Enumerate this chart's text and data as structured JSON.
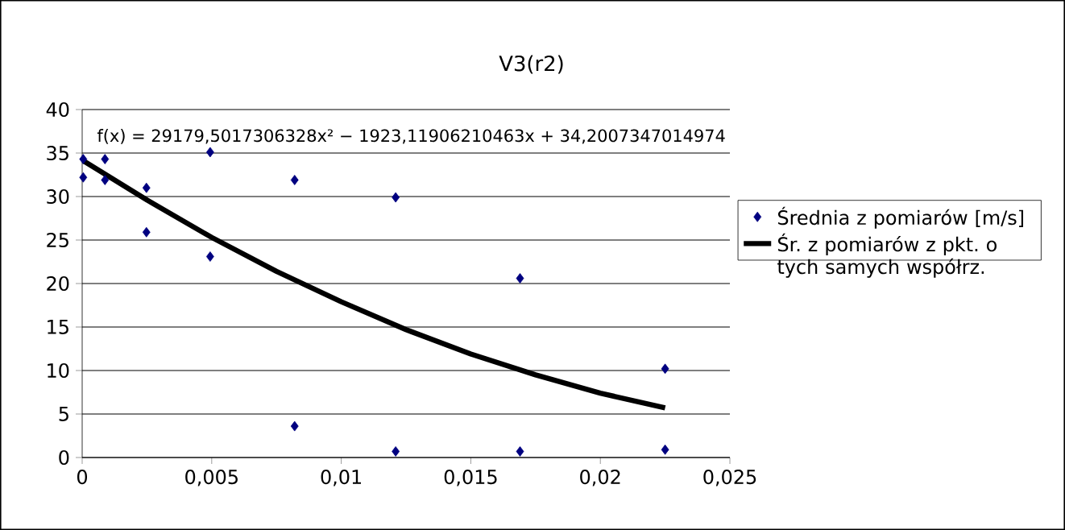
{
  "chart_data": {
    "type": "scatter",
    "title": "V3(r2)",
    "annotations": [
      "f(x) = 29179,5017306328x² − 1923,11906210463x + 34,2007347014974"
    ],
    "xlim": [
      0,
      0.025
    ],
    "xticks": [
      {
        "value": 0,
        "label": "0"
      },
      {
        "value": 0.005,
        "label": "0,005"
      },
      {
        "value": 0.01,
        "label": "0,01"
      },
      {
        "value": 0.015,
        "label": "0,015"
      },
      {
        "value": 0.02,
        "label": "0,02"
      },
      {
        "value": 0.025,
        "label": "0,025"
      }
    ],
    "ylim": [
      0,
      40
    ],
    "yticks": [
      0,
      5,
      10,
      15,
      20,
      25,
      30,
      35,
      40
    ],
    "grid": "y",
    "legend": "right",
    "series": [
      {
        "name": "Średnia z pomiarów [m/s]",
        "marker": "diamond",
        "color": "#000080",
        "x": [
          4e-05,
          4e-05,
          0.00088,
          0.00088,
          0.00248,
          0.00248,
          0.00494,
          0.00494,
          0.0082,
          0.0082,
          0.0121,
          0.0121,
          0.0169,
          0.0169,
          0.0225,
          0.0225
        ],
        "values": [
          34.3,
          32.2,
          34.3,
          31.9,
          31.0,
          25.9,
          35.1,
          23.1,
          31.9,
          3.6,
          29.9,
          0.7,
          20.6,
          0.7,
          10.2,
          0.9
        ]
      },
      {
        "name": "Śr. z pomiarów z pkt. o tych samych współrz.",
        "type": "line",
        "marker": "none",
        "color": "#000000",
        "x": [
          0,
          0.0025,
          0.005,
          0.0075,
          0.01,
          0.0125,
          0.015,
          0.0175,
          0.02,
          0.0225
        ],
        "values": [
          34.2,
          29.6,
          25.3,
          21.4,
          17.9,
          14.7,
          11.9,
          9.5,
          7.4,
          5.7
        ]
      }
    ]
  }
}
